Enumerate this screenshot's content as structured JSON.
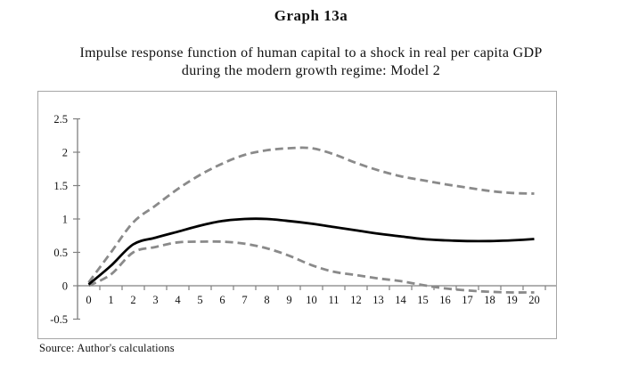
{
  "header": {
    "title": "Graph 13a",
    "subtitle_line1": "Impulse response function of human capital to a shock in real per capita GDP",
    "subtitle_line2": "during the modern growth regime: Model 2"
  },
  "source_note": "Source: Author's calculations",
  "colors": {
    "axis": "#808080",
    "frame_border": "#a6a6a6",
    "dashed_band": "#8a8a8a",
    "solid_line": "#000000",
    "text": "#111111"
  },
  "chart_data": {
    "type": "line",
    "title": "Graph 13a",
    "xlabel": "",
    "ylabel": "",
    "x": [
      0,
      1,
      2,
      3,
      4,
      5,
      6,
      7,
      8,
      9,
      10,
      11,
      12,
      13,
      14,
      15,
      16,
      17,
      18,
      19,
      20
    ],
    "x_tick_labels": [
      "0",
      "1",
      "2",
      "3",
      "4",
      "5",
      "6",
      "7",
      "8",
      "9",
      "10",
      "11",
      "12",
      "13",
      "14",
      "15",
      "16",
      "17",
      "18",
      "19",
      "20"
    ],
    "y_ticks": [
      2.5,
      2,
      1.5,
      1,
      0.5,
      0,
      -0.5
    ],
    "y_tick_labels": [
      "2.5",
      "2",
      "1.5",
      "1",
      "0.5",
      "0",
      "-0.5"
    ],
    "ylim": [
      -0.5,
      2.5
    ],
    "xlim": [
      0,
      20
    ],
    "grid": false,
    "legend": "none",
    "series": [
      {
        "name": "upper band (dashed)",
        "style": "dashed",
        "color": "#8a8a8a",
        "values": [
          0.05,
          0.5,
          0.95,
          1.2,
          1.45,
          1.66,
          1.83,
          1.96,
          2.03,
          2.06,
          2.06,
          1.97,
          1.84,
          1.73,
          1.64,
          1.58,
          1.52,
          1.47,
          1.42,
          1.39,
          1.38
        ]
      },
      {
        "name": "lower band (dashed)",
        "style": "dashed",
        "color": "#8a8a8a",
        "values": [
          0.0,
          0.17,
          0.5,
          0.58,
          0.65,
          0.66,
          0.66,
          0.63,
          0.56,
          0.45,
          0.31,
          0.21,
          0.16,
          0.11,
          0.07,
          0.01,
          -0.04,
          -0.07,
          -0.09,
          -0.1,
          -0.1
        ]
      },
      {
        "name": "impulse response (solid)",
        "style": "solid",
        "color": "#000000",
        "values": [
          0.02,
          0.3,
          0.62,
          0.72,
          0.81,
          0.9,
          0.97,
          1.0,
          1.0,
          0.97,
          0.93,
          0.88,
          0.83,
          0.78,
          0.74,
          0.7,
          0.68,
          0.67,
          0.67,
          0.68,
          0.7
        ]
      }
    ]
  }
}
